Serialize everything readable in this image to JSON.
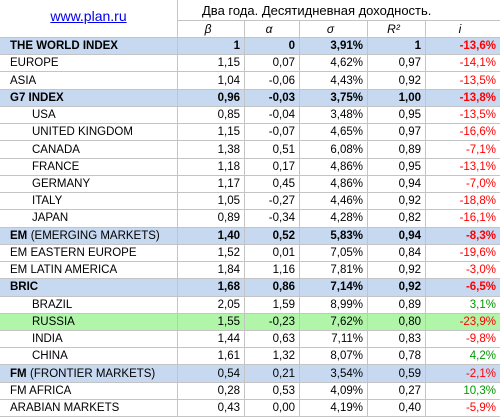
{
  "header": {
    "link": "www.plan.ru"
  },
  "colors": {
    "link": "#0000ee",
    "negative": "#ff0000",
    "positive": "#009900"
  },
  "chart_data": {
    "type": "table",
    "title": "Два года. Десятидневная доходность.",
    "columns": [
      {
        "label": "β"
      },
      {
        "label": "α"
      },
      {
        "label": "σ"
      },
      {
        "label": "R²"
      },
      {
        "label": "i"
      }
    ],
    "rows": [
      {
        "name": "THE WORLD INDEX",
        "level": 0,
        "bold": true,
        "bold_values": true,
        "highlight": "#c6d9f1",
        "values": [
          "1",
          "0",
          "3,91%",
          "1",
          "-13,6%"
        ]
      },
      {
        "name": "EUROPE",
        "level": 0,
        "values": [
          "1,15",
          "0,07",
          "4,62%",
          "0,97",
          "-14,1%"
        ]
      },
      {
        "name": "ASIA",
        "level": 0,
        "values": [
          "1,04",
          "-0,06",
          "4,43%",
          "0,92",
          "-13,5%"
        ]
      },
      {
        "name": "G7 INDEX",
        "level": 0,
        "bold": true,
        "bold_values": true,
        "highlight": "#c6d9f1",
        "values": [
          "0,96",
          "-0,03",
          "3,75%",
          "1,00",
          "-13,8%"
        ]
      },
      {
        "name": "USA",
        "level": 1,
        "values": [
          "0,85",
          "-0,04",
          "3,48%",
          "0,95",
          "-13,5%"
        ]
      },
      {
        "name": "UNITED KINGDOM",
        "level": 1,
        "values": [
          "1,15",
          "-0,07",
          "4,65%",
          "0,97",
          "-16,6%"
        ]
      },
      {
        "name": "CANADA",
        "level": 1,
        "values": [
          "1,38",
          "0,51",
          "6,08%",
          "0,89",
          "-7,1%"
        ]
      },
      {
        "name": "FRANCE",
        "level": 1,
        "values": [
          "1,18",
          "0,17",
          "4,86%",
          "0,95",
          "-13,1%"
        ]
      },
      {
        "name": "GERMANY",
        "level": 1,
        "values": [
          "1,17",
          "0,45",
          "4,86%",
          "0,94",
          "-7,0%"
        ]
      },
      {
        "name": "ITALY",
        "level": 1,
        "values": [
          "1,05",
          "-0,27",
          "4,46%",
          "0,92",
          "-18,8%"
        ]
      },
      {
        "name": "JAPAN",
        "level": 1,
        "values": [
          "0,89",
          "-0,34",
          "4,28%",
          "0,82",
          "-16,1%"
        ]
      },
      {
        "name": "EM",
        "name_suffix": "(EMERGING MARKETS)",
        "level": 0,
        "bold": true,
        "bold_values": true,
        "highlight": "#c6d9f1",
        "values": [
          "1,40",
          "0,52",
          "5,83%",
          "0,94",
          "-8,3%"
        ]
      },
      {
        "name": "EM EASTERN EUROPE",
        "level": 0,
        "values": [
          "1,52",
          "0,01",
          "7,05%",
          "0,84",
          "-19,6%"
        ]
      },
      {
        "name": "EM LATIN AMERICA",
        "level": 0,
        "values": [
          "1,84",
          "1,16",
          "7,81%",
          "0,92",
          "-3,0%"
        ]
      },
      {
        "name": "BRIC",
        "level": 0,
        "bold": true,
        "bold_values": true,
        "highlight": "#c6d9f1",
        "values": [
          "1,68",
          "0,86",
          "7,14%",
          "0,92",
          "-6,5%"
        ]
      },
      {
        "name": "BRAZIL",
        "level": 1,
        "values": [
          "2,05",
          "1,59",
          "8,99%",
          "0,89",
          "3,1%"
        ]
      },
      {
        "name": "RUSSIA",
        "level": 1,
        "highlight": "#b0f5a8",
        "values": [
          "1,55",
          "-0,23",
          "7,62%",
          "0,80",
          "-23,9%"
        ]
      },
      {
        "name": "INDIA",
        "level": 1,
        "values": [
          "1,44",
          "0,63",
          "7,11%",
          "0,83",
          "-9,8%"
        ]
      },
      {
        "name": "CHINA",
        "level": 1,
        "values": [
          "1,61",
          "1,32",
          "8,07%",
          "0,78",
          "4,2%"
        ]
      },
      {
        "name": "FM",
        "name_suffix": "(FRONTIER MARKETS)",
        "level": 0,
        "bold": true,
        "bold_values": false,
        "highlight": "#c6d9f1",
        "values": [
          "0,54",
          "0,21",
          "3,54%",
          "0,59",
          "-2,1%"
        ]
      },
      {
        "name": "FM AFRICA",
        "level": 0,
        "values": [
          "0,28",
          "0,53",
          "4,09%",
          "0,27",
          "10,3%"
        ]
      },
      {
        "name": "ARABIAN MARKETS",
        "level": 0,
        "values": [
          "0,43",
          "0,00",
          "4,19%",
          "0,40",
          "-5,9%"
        ]
      }
    ]
  }
}
